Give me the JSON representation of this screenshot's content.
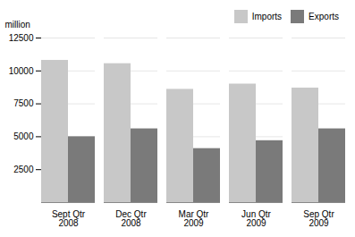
{
  "chart_data": {
    "type": "bar",
    "ylabel": "million",
    "categories": [
      "Sept Qtr\n2008",
      "Dec Qtr\n2008",
      "Mar Qtr\n2009",
      "Jun Qtr\n2009",
      "Sep Qtr\n2009"
    ],
    "series": [
      {
        "name": "Imports",
        "color": "#c8c8c8",
        "values": [
          10800,
          10550,
          8600,
          9000,
          8700
        ]
      },
      {
        "name": "Exports",
        "color": "#7a7a7a",
        "values": [
          5000,
          5600,
          4100,
          4700,
          5600
        ]
      }
    ],
    "ylim": [
      0,
      12500
    ],
    "yticks": [
      2500,
      5000,
      7500,
      10000,
      12500
    ],
    "grid": true,
    "legend": "upper right"
  }
}
